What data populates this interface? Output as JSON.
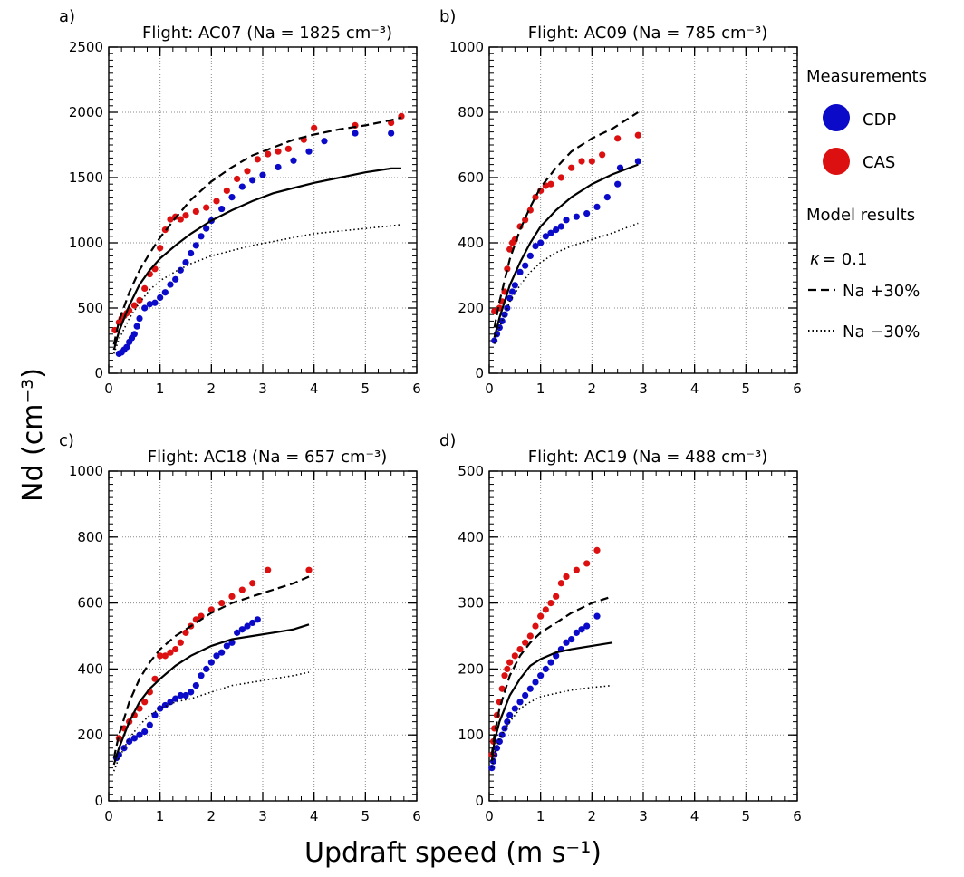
{
  "figure": {
    "xlabel": "Updraft speed (m s⁻¹)",
    "ylabel": "Nd (cm⁻³)"
  },
  "legend": {
    "measurements_title": "Measurements",
    "cdp_label": "CDP",
    "cas_label": "CAS",
    "model_title": "Model results",
    "kappa_symbol": "κ",
    "kappa_text": "= 0.1",
    "plus_label": "Na +30%",
    "minus_label": "Na −30%"
  },
  "colors": {
    "cdp": "#0a0ac8",
    "cas": "#dc1010",
    "model": "#000000",
    "grid": "#8a8a8a"
  },
  "chart_data": [
    {
      "type": "scatter",
      "panel_label": "a)",
      "title": "Flight: AC07 (Na = 1825 cm⁻³)",
      "xlim": [
        0,
        6
      ],
      "ylim": [
        0,
        2500
      ],
      "xticks": [
        0,
        1,
        2,
        3,
        4,
        5,
        6
      ],
      "yticks": [
        0,
        500,
        1000,
        1500,
        2000,
        2500
      ],
      "grid": true,
      "series": [
        {
          "name": "CDP",
          "kind": "points",
          "x": [
            0.2,
            0.25,
            0.3,
            0.35,
            0.4,
            0.45,
            0.5,
            0.55,
            0.6,
            0.7,
            0.8,
            0.9,
            1.0,
            1.1,
            1.2,
            1.3,
            1.4,
            1.5,
            1.6,
            1.7,
            1.8,
            1.9,
            2.0,
            2.2,
            2.4,
            2.6,
            2.8,
            3.0,
            3.3,
            3.6,
            3.9,
            4.2,
            4.8,
            5.5
          ],
          "y": [
            150,
            160,
            180,
            200,
            240,
            270,
            300,
            360,
            420,
            500,
            530,
            540,
            580,
            620,
            680,
            720,
            790,
            850,
            920,
            980,
            1050,
            1110,
            1170,
            1260,
            1350,
            1430,
            1480,
            1520,
            1580,
            1630,
            1700,
            1780,
            1840,
            1840
          ]
        },
        {
          "name": "CAS",
          "kind": "points",
          "x": [
            0.12,
            0.2,
            0.25,
            0.3,
            0.35,
            0.4,
            0.5,
            0.6,
            0.7,
            0.8,
            0.9,
            1.0,
            1.1,
            1.2,
            1.3,
            1.4,
            1.5,
            1.7,
            1.9,
            2.1,
            2.3,
            2.5,
            2.7,
            2.9,
            3.1,
            3.3,
            3.5,
            3.8,
            4.0,
            4.8,
            5.5,
            5.7
          ],
          "y": [
            330,
            390,
            420,
            440,
            460,
            480,
            520,
            560,
            650,
            760,
            800,
            960,
            1100,
            1180,
            1200,
            1180,
            1210,
            1240,
            1270,
            1320,
            1400,
            1490,
            1550,
            1640,
            1680,
            1700,
            1720,
            1790,
            1880,
            1900,
            1920,
            1970
          ]
        },
        {
          "name": "κ = 0.1",
          "kind": "solid",
          "x": [
            0.1,
            0.2,
            0.4,
            0.6,
            0.8,
            1.0,
            1.3,
            1.6,
            2.0,
            2.4,
            2.8,
            3.2,
            3.6,
            4.0,
            4.5,
            5.0,
            5.5,
            5.7
          ],
          "y": [
            180,
            320,
            520,
            680,
            790,
            880,
            980,
            1070,
            1170,
            1250,
            1320,
            1380,
            1420,
            1460,
            1500,
            1540,
            1570,
            1570
          ]
        },
        {
          "name": "Na +30%",
          "kind": "dashed",
          "x": [
            0.1,
            0.2,
            0.4,
            0.6,
            0.8,
            1.0,
            1.3,
            1.6,
            2.0,
            2.4,
            2.8,
            3.2,
            3.6,
            4.0,
            4.5,
            5.0,
            5.5,
            5.7
          ],
          "y": [
            220,
            400,
            620,
            790,
            920,
            1040,
            1190,
            1330,
            1470,
            1580,
            1670,
            1730,
            1790,
            1830,
            1870,
            1900,
            1940,
            1960
          ]
        },
        {
          "name": "Na −30%",
          "kind": "dotted",
          "x": [
            0.1,
            0.2,
            0.4,
            0.6,
            0.8,
            1.0,
            1.3,
            1.6,
            2.0,
            2.4,
            2.8,
            3.2,
            3.6,
            4.0,
            4.5,
            5.0,
            5.5,
            5.7
          ],
          "y": [
            150,
            260,
            420,
            540,
            640,
            710,
            780,
            840,
            900,
            940,
            980,
            1010,
            1040,
            1070,
            1090,
            1110,
            1130,
            1140
          ]
        }
      ]
    },
    {
      "type": "scatter",
      "panel_label": "b)",
      "title": "Flight: AC09 (Na = 785 cm⁻³)",
      "xlim": [
        0,
        6
      ],
      "ylim": [
        0,
        1000
      ],
      "xticks": [
        0,
        1,
        2,
        3,
        4,
        5,
        6
      ],
      "yticks": [
        0,
        200,
        400,
        600,
        800,
        1000
      ],
      "grid": true,
      "series": [
        {
          "name": "CDP",
          "kind": "points",
          "x": [
            0.1,
            0.15,
            0.2,
            0.25,
            0.3,
            0.35,
            0.4,
            0.45,
            0.5,
            0.6,
            0.7,
            0.8,
            0.9,
            1.0,
            1.1,
            1.2,
            1.3,
            1.4,
            1.5,
            1.7,
            1.9,
            2.1,
            2.3,
            2.5,
            2.55,
            2.9
          ],
          "y": [
            100,
            120,
            140,
            160,
            180,
            200,
            230,
            250,
            270,
            310,
            330,
            360,
            390,
            400,
            420,
            430,
            440,
            450,
            470,
            480,
            490,
            510,
            540,
            580,
            630,
            650
          ]
        },
        {
          "name": "CAS",
          "kind": "points",
          "x": [
            0.1,
            0.2,
            0.25,
            0.3,
            0.35,
            0.4,
            0.45,
            0.5,
            0.6,
            0.7,
            0.8,
            0.9,
            1.0,
            1.1,
            1.2,
            1.4,
            1.6,
            1.8,
            2.0,
            2.2,
            2.5,
            2.9
          ],
          "y": [
            190,
            200,
            220,
            250,
            320,
            380,
            400,
            410,
            450,
            470,
            500,
            540,
            560,
            575,
            580,
            600,
            630,
            650,
            650,
            670,
            720,
            730
          ]
        },
        {
          "name": "κ = 0.1",
          "kind": "solid",
          "x": [
            0.1,
            0.2,
            0.4,
            0.6,
            0.8,
            1.0,
            1.3,
            1.6,
            2.0,
            2.4,
            2.9
          ],
          "y": [
            110,
            170,
            270,
            340,
            400,
            450,
            500,
            540,
            580,
            610,
            640
          ]
        },
        {
          "name": "Na +30%",
          "kind": "dashed",
          "x": [
            0.1,
            0.2,
            0.4,
            0.6,
            0.8,
            1.0,
            1.3,
            1.6,
            2.0,
            2.4,
            2.9
          ],
          "y": [
            140,
            220,
            350,
            440,
            510,
            570,
            630,
            680,
            720,
            750,
            800
          ]
        },
        {
          "name": "Na −30%",
          "kind": "dotted",
          "x": [
            0.1,
            0.2,
            0.4,
            0.6,
            0.8,
            1.0,
            1.3,
            1.6,
            2.0,
            2.4,
            2.9
          ],
          "y": [
            90,
            140,
            220,
            270,
            310,
            340,
            370,
            390,
            410,
            430,
            460
          ]
        }
      ]
    },
    {
      "type": "scatter",
      "panel_label": "c)",
      "title": "Flight: AC18 (Na = 657 cm⁻³)",
      "xlim": [
        0,
        6
      ],
      "ylim": [
        0,
        1000
      ],
      "xticks": [
        0,
        1,
        2,
        3,
        4,
        5,
        6
      ],
      "yticks": [
        0,
        200,
        400,
        600,
        800,
        1000
      ],
      "grid": true,
      "series": [
        {
          "name": "CDP",
          "kind": "points",
          "x": [
            0.15,
            0.2,
            0.3,
            0.4,
            0.5,
            0.6,
            0.7,
            0.8,
            0.9,
            1.0,
            1.1,
            1.2,
            1.3,
            1.4,
            1.5,
            1.6,
            1.7,
            1.8,
            1.9,
            2.0,
            2.1,
            2.2,
            2.3,
            2.4,
            2.5,
            2.6,
            2.7,
            2.8,
            2.9
          ],
          "y": [
            130,
            140,
            160,
            180,
            190,
            200,
            210,
            230,
            260,
            280,
            290,
            300,
            310,
            320,
            320,
            330,
            350,
            380,
            400,
            420,
            440,
            450,
            470,
            480,
            510,
            520,
            530,
            540,
            550
          ]
        },
        {
          "name": "CAS",
          "kind": "points",
          "x": [
            0.2,
            0.3,
            0.4,
            0.5,
            0.6,
            0.7,
            0.8,
            0.9,
            1.0,
            1.1,
            1.2,
            1.3,
            1.4,
            1.5,
            1.6,
            1.7,
            1.8,
            2.0,
            2.2,
            2.4,
            2.6,
            2.8,
            3.1,
            3.9
          ],
          "y": [
            190,
            220,
            240,
            260,
            280,
            300,
            330,
            370,
            440,
            440,
            450,
            460,
            480,
            510,
            530,
            550,
            560,
            580,
            600,
            620,
            640,
            660,
            700,
            700
          ]
        },
        {
          "name": "κ = 0.1",
          "kind": "solid",
          "x": [
            0.1,
            0.2,
            0.4,
            0.6,
            0.8,
            1.0,
            1.3,
            1.6,
            2.0,
            2.4,
            2.8,
            3.2,
            3.6,
            3.9
          ],
          "y": [
            110,
            160,
            240,
            300,
            340,
            370,
            410,
            440,
            470,
            490,
            500,
            510,
            520,
            535
          ]
        },
        {
          "name": "Na +30%",
          "kind": "dashed",
          "x": [
            0.1,
            0.2,
            0.4,
            0.6,
            0.8,
            1.0,
            1.3,
            1.6,
            2.0,
            2.4,
            2.8,
            3.2,
            3.6,
            3.9
          ],
          "y": [
            130,
            200,
            300,
            370,
            420,
            460,
            500,
            530,
            570,
            600,
            620,
            640,
            660,
            680
          ]
        },
        {
          "name": "Na −30%",
          "kind": "dotted",
          "x": [
            0.1,
            0.2,
            0.4,
            0.6,
            0.8,
            1.0,
            1.3,
            1.6,
            2.0,
            2.4,
            2.8,
            3.2,
            3.6,
            3.9
          ],
          "y": [
            90,
            130,
            190,
            230,
            260,
            280,
            300,
            310,
            330,
            350,
            360,
            370,
            380,
            390
          ]
        }
      ]
    },
    {
      "type": "scatter",
      "panel_label": "d)",
      "title": "Flight: AC19 (Na = 488 cm⁻³)",
      "xlim": [
        0,
        6
      ],
      "ylim": [
        0,
        500
      ],
      "xticks": [
        0,
        1,
        2,
        3,
        4,
        5,
        6
      ],
      "yticks": [
        0,
        100,
        200,
        300,
        400,
        500
      ],
      "grid": true,
      "series": [
        {
          "name": "CDP",
          "kind": "points",
          "x": [
            0.05,
            0.08,
            0.1,
            0.15,
            0.2,
            0.25,
            0.3,
            0.35,
            0.4,
            0.5,
            0.6,
            0.7,
            0.8,
            0.9,
            1.0,
            1.1,
            1.2,
            1.3,
            1.4,
            1.5,
            1.6,
            1.7,
            1.8,
            1.9,
            2.1
          ],
          "y": [
            50,
            60,
            70,
            80,
            90,
            100,
            110,
            120,
            130,
            140,
            150,
            160,
            170,
            180,
            190,
            200,
            210,
            220,
            230,
            240,
            245,
            255,
            260,
            265,
            280
          ]
        },
        {
          "name": "CAS",
          "kind": "points",
          "x": [
            0.05,
            0.08,
            0.1,
            0.15,
            0.2,
            0.25,
            0.3,
            0.35,
            0.4,
            0.5,
            0.6,
            0.7,
            0.8,
            0.9,
            1.0,
            1.1,
            1.2,
            1.3,
            1.4,
            1.5,
            1.7,
            1.9,
            2.1
          ],
          "y": [
            70,
            90,
            110,
            130,
            150,
            170,
            190,
            200,
            210,
            220,
            230,
            240,
            250,
            265,
            280,
            290,
            300,
            310,
            330,
            340,
            350,
            360,
            380
          ]
        },
        {
          "name": "κ = 0.1",
          "kind": "solid",
          "x": [
            0.05,
            0.1,
            0.2,
            0.4,
            0.6,
            0.8,
            1.0,
            1.3,
            1.6,
            2.0,
            2.4
          ],
          "y": [
            60,
            90,
            120,
            160,
            185,
            205,
            215,
            225,
            230,
            235,
            240
          ]
        },
        {
          "name": "Na +30%",
          "kind": "dashed",
          "x": [
            0.05,
            0.1,
            0.2,
            0.4,
            0.6,
            0.8,
            1.0,
            1.3,
            1.6,
            2.0,
            2.4
          ],
          "y": [
            70,
            100,
            140,
            190,
            220,
            240,
            255,
            270,
            285,
            300,
            310
          ]
        },
        {
          "name": "Na −30%",
          "kind": "dotted",
          "x": [
            0.05,
            0.1,
            0.2,
            0.4,
            0.6,
            0.8,
            1.0,
            1.3,
            1.6,
            2.0,
            2.4
          ],
          "y": [
            50,
            70,
            95,
            120,
            140,
            150,
            158,
            163,
            168,
            172,
            175
          ]
        }
      ]
    }
  ]
}
